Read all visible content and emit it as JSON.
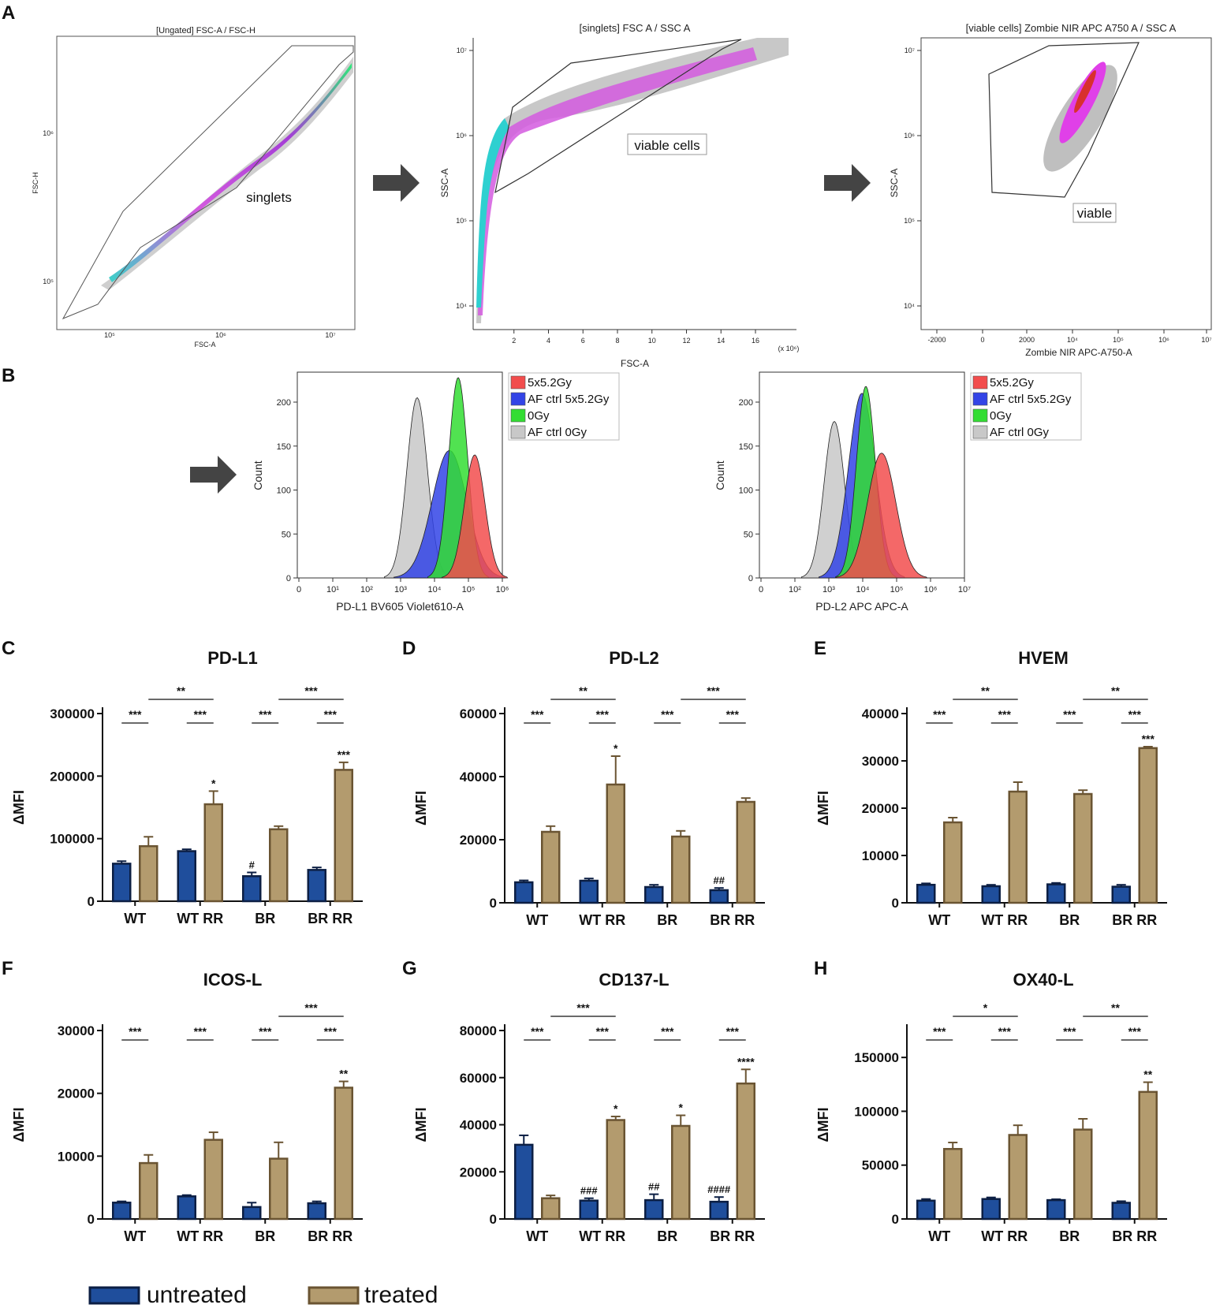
{
  "panel_labels": [
    "A",
    "B",
    "C",
    "D",
    "E",
    "F",
    "G",
    "H"
  ],
  "flow": {
    "plot1": {
      "title": "[Ungated] FSC-A / FSC-H",
      "xlabel": "FSC-A",
      "ylabel": "FSC-H",
      "gate": "singlets"
    },
    "plot2": {
      "title": "[singlets] FSC A / SSC A",
      "xlabel": "FSC-A",
      "ylabel": "SSC-A",
      "gate": "viable cells",
      "xticks": [
        "2",
        "4",
        "6",
        "8",
        "10",
        "12",
        "14",
        "16"
      ],
      "xunit": "(x 10⁶)",
      "yticks": [
        "10⁷",
        "10⁶",
        "10⁵",
        "10⁴"
      ]
    },
    "plot3": {
      "title": "[viable cells] Zombie NIR APC A750 A / SSC A",
      "xlabel": "Zombie NIR APC-A750-A",
      "ylabel": "SSC-A",
      "gate": "viable",
      "xticks": [
        "-2000",
        "0",
        "2000",
        "10⁴",
        "10⁵",
        "10⁶",
        "10⁷"
      ],
      "yticks": [
        "10⁷",
        "10⁶",
        "10⁵",
        "10⁴"
      ]
    }
  },
  "histograms": {
    "legend": [
      "5x5.2Gy",
      "AF ctrl 5x5.2Gy",
      "0Gy",
      "AF ctrl 0Gy"
    ],
    "legend_colors": [
      "#f24d4d",
      "#3344e6",
      "#33dd33",
      "#c8c8c8"
    ],
    "ylabel": "Count",
    "yticks": [
      "200",
      "150",
      "100",
      "50",
      "0"
    ],
    "h1": {
      "xlabel": "PD-L1 BV605 Violet610-A",
      "xticks": [
        "0",
        "10¹",
        "10²",
        "10³",
        "10⁴",
        "10⁵",
        "10⁶"
      ]
    },
    "h2": {
      "xlabel": "PD-L2 APC APC-A",
      "xticks": [
        "0",
        "10²",
        "10³",
        "10⁴",
        "10⁵",
        "10⁶",
        "10⁷"
      ]
    }
  },
  "colors": {
    "untreated": "#1f4e9c",
    "treated": "#b39b6e",
    "untreated_edge": "#0c1f44",
    "treated_edge": "#6a5432"
  },
  "legend": {
    "untreated": "untreated",
    "treated": "treated"
  },
  "chart_data": [
    {
      "type": "bar",
      "id": "C",
      "title": "PD-L1",
      "ylabel": "ΔMFI",
      "ylim": [
        0,
        300000
      ],
      "yticks": [
        "0",
        "100000",
        "200000",
        "300000"
      ],
      "categories": [
        "WT",
        "WT RR",
        "BR",
        "BR RR"
      ],
      "series": [
        {
          "name": "untreated",
          "values": [
            60000,
            80000,
            40000,
            50000
          ],
          "errors": [
            4000,
            3000,
            6000,
            4000
          ]
        },
        {
          "name": "treated",
          "values": [
            88000,
            155000,
            115000,
            210000
          ],
          "errors": [
            15000,
            21000,
            5000,
            12000
          ]
        }
      ],
      "above_treated": [
        "",
        "*",
        "",
        "***"
      ],
      "above_untreated": [
        "",
        "",
        "#",
        ""
      ],
      "brackets": [
        {
          "from": "WT.u",
          "to": "WT.t",
          "label": "***",
          "level": 0
        },
        {
          "from": "WTRR.u",
          "to": "WTRR.t",
          "label": "***",
          "level": 0
        },
        {
          "from": "BR.u",
          "to": "BR.t",
          "label": "***",
          "level": 0
        },
        {
          "from": "BRRR.u",
          "to": "BRRR.t",
          "label": "***",
          "level": 0
        },
        {
          "from": "WT.t",
          "to": "WTRR.t",
          "label": "**",
          "level": 1
        },
        {
          "from": "BR.t",
          "to": "BRRR.t",
          "label": "***",
          "level": 1
        }
      ]
    },
    {
      "type": "bar",
      "id": "D",
      "title": "PD-L2",
      "ylabel": "ΔMFI",
      "ylim": [
        0,
        60000
      ],
      "yticks": [
        "0",
        "20000",
        "40000",
        "60000"
      ],
      "categories": [
        "WT",
        "WT RR",
        "BR",
        "BR RR"
      ],
      "series": [
        {
          "name": "untreated",
          "values": [
            6500,
            7000,
            5000,
            4000
          ],
          "errors": [
            600,
            700,
            700,
            700
          ]
        },
        {
          "name": "treated",
          "values": [
            22500,
            37500,
            21000,
            32000
          ],
          "errors": [
            1800,
            9000,
            1800,
            1200
          ]
        }
      ],
      "above_treated": [
        "",
        "*",
        "",
        ""
      ],
      "above_untreated": [
        "",
        "",
        "",
        "##"
      ],
      "brackets": [
        {
          "from": "WT.u",
          "to": "WT.t",
          "label": "***",
          "level": 0
        },
        {
          "from": "WTRR.u",
          "to": "WTRR.t",
          "label": "***",
          "level": 0
        },
        {
          "from": "BR.u",
          "to": "BR.t",
          "label": "***",
          "level": 0
        },
        {
          "from": "BRRR.u",
          "to": "BRRR.t",
          "label": "***",
          "level": 0
        },
        {
          "from": "WT.t",
          "to": "WTRR.t",
          "label": "**",
          "level": 1
        },
        {
          "from": "BR.t",
          "to": "BRRR.t",
          "label": "***",
          "level": 1
        }
      ]
    },
    {
      "type": "bar",
      "id": "E",
      "title": "HVEM",
      "ylabel": "ΔMFI",
      "ylim": [
        0,
        40000
      ],
      "yticks": [
        "0",
        "10000",
        "20000",
        "30000",
        "40000"
      ],
      "categories": [
        "WT",
        "WT RR",
        "BR",
        "BR RR"
      ],
      "series": [
        {
          "name": "untreated",
          "values": [
            3800,
            3500,
            3900,
            3400
          ],
          "errors": [
            300,
            300,
            300,
            400
          ]
        },
        {
          "name": "treated",
          "values": [
            17000,
            23500,
            23000,
            32700
          ],
          "errors": [
            1000,
            2000,
            800,
            300
          ]
        }
      ],
      "above_treated": [
        "",
        "",
        "",
        "***"
      ],
      "above_untreated": [
        "",
        "",
        "",
        ""
      ],
      "brackets": [
        {
          "from": "WT.u",
          "to": "WT.t",
          "label": "***",
          "level": 0
        },
        {
          "from": "WTRR.u",
          "to": "WTRR.t",
          "label": "***",
          "level": 0
        },
        {
          "from": "BR.u",
          "to": "BR.t",
          "label": "***",
          "level": 0
        },
        {
          "from": "BRRR.u",
          "to": "BRRR.t",
          "label": "***",
          "level": 0
        },
        {
          "from": "WT.t",
          "to": "WTRR.t",
          "label": "**",
          "level": 1
        },
        {
          "from": "BR.t",
          "to": "BRRR.t",
          "label": "**",
          "level": 1
        }
      ]
    },
    {
      "type": "bar",
      "id": "F",
      "title": "ICOS-L",
      "ylabel": "ΔMFI",
      "ylim": [
        0,
        30000
      ],
      "yticks": [
        "0",
        "10000",
        "20000",
        "30000"
      ],
      "categories": [
        "WT",
        "WT RR",
        "BR",
        "BR RR"
      ],
      "series": [
        {
          "name": "untreated",
          "values": [
            2600,
            3600,
            1900,
            2500
          ],
          "errors": [
            200,
            200,
            700,
            300
          ]
        },
        {
          "name": "treated",
          "values": [
            8900,
            12600,
            9600,
            20900
          ],
          "errors": [
            1300,
            1200,
            2600,
            1000
          ]
        }
      ],
      "above_treated": [
        "",
        "",
        "",
        "**"
      ],
      "above_untreated": [
        "",
        "",
        "",
        ""
      ],
      "brackets": [
        {
          "from": "WT.u",
          "to": "WT.t",
          "label": "***",
          "level": 0
        },
        {
          "from": "WTRR.u",
          "to": "WTRR.t",
          "label": "***",
          "level": 0
        },
        {
          "from": "BR.u",
          "to": "BR.t",
          "label": "***",
          "level": 0
        },
        {
          "from": "BRRR.u",
          "to": "BRRR.t",
          "label": "***",
          "level": 0
        },
        {
          "from": "BR.t",
          "to": "BRRR.t",
          "label": "***",
          "level": 1
        }
      ]
    },
    {
      "type": "bar",
      "id": "G",
      "title": "CD137-L",
      "ylabel": "ΔMFI",
      "ylim": [
        0,
        80000
      ],
      "yticks": [
        "0",
        "20000",
        "40000",
        "60000",
        "80000"
      ],
      "categories": [
        "WT",
        "WT RR",
        "BR",
        "BR RR"
      ],
      "series": [
        {
          "name": "untreated",
          "values": [
            31500,
            7800,
            8000,
            7300
          ],
          "errors": [
            4000,
            1000,
            2500,
            2000
          ]
        },
        {
          "name": "treated",
          "values": [
            8800,
            42000,
            39500,
            57500
          ],
          "errors": [
            1200,
            1500,
            4500,
            6000
          ]
        }
      ],
      "above_treated": [
        "",
        "*",
        "*",
        "****"
      ],
      "above_untreated": [
        "",
        "###",
        "##",
        "####"
      ],
      "brackets": [
        {
          "from": "WT.u",
          "to": "WT.t",
          "label": "***",
          "level": 0
        },
        {
          "from": "WTRR.u",
          "to": "WTRR.t",
          "label": "***",
          "level": 0
        },
        {
          "from": "BR.u",
          "to": "BR.t",
          "label": "***",
          "level": 0
        },
        {
          "from": "BRRR.u",
          "to": "BRRR.t",
          "label": "***",
          "level": 0
        },
        {
          "from": "WT.t",
          "to": "WTRR.t",
          "label": "***",
          "level": 1
        }
      ]
    },
    {
      "type": "bar",
      "id": "H",
      "title": "OX40-L",
      "ylabel": "ΔMFI",
      "ylim": [
        0,
        175000
      ],
      "yticks": [
        "0",
        "50000",
        "100000",
        "150000"
      ],
      "categories": [
        "WT",
        "WT RR",
        "BR",
        "BR RR"
      ],
      "series": [
        {
          "name": "untreated",
          "values": [
            17000,
            18500,
            17500,
            15000
          ],
          "errors": [
            1500,
            1500,
            800,
            1500
          ]
        },
        {
          "name": "treated",
          "values": [
            65000,
            78000,
            83000,
            118000
          ],
          "errors": [
            6000,
            9000,
            10000,
            9000
          ]
        }
      ],
      "above_treated": [
        "",
        "",
        "",
        "**"
      ],
      "above_untreated": [
        "",
        "",
        "",
        ""
      ],
      "brackets": [
        {
          "from": "WT.u",
          "to": "WT.t",
          "label": "***",
          "level": 0
        },
        {
          "from": "WTRR.u",
          "to": "WTRR.t",
          "label": "***",
          "level": 0
        },
        {
          "from": "BR.u",
          "to": "BR.t",
          "label": "***",
          "level": 0
        },
        {
          "from": "BRRR.u",
          "to": "BRRR.t",
          "label": "***",
          "level": 0
        },
        {
          "from": "WT.t",
          "to": "WTRR.t",
          "label": "*",
          "level": 1
        },
        {
          "from": "BR.t",
          "to": "BRRR.t",
          "label": "**",
          "level": 1
        }
      ]
    }
  ]
}
